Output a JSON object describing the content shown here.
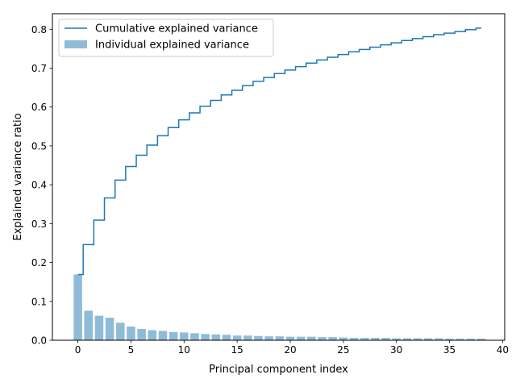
{
  "chart_data": {
    "type": "bar",
    "xlabel": "Principal component index",
    "ylabel": "Explained variance ratio",
    "xlim": [
      -2.4,
      40.2
    ],
    "ylim": [
      0.0,
      0.84
    ],
    "xticks": [
      0,
      5,
      10,
      15,
      20,
      25,
      30,
      35,
      40
    ],
    "yticks": [
      0.0,
      0.1,
      0.2,
      0.3,
      0.4,
      0.5,
      0.6,
      0.7,
      0.8
    ],
    "xtick_labels": [
      "0",
      "5",
      "10",
      "15",
      "20",
      "25",
      "30",
      "35",
      "40"
    ],
    "ytick_labels": [
      "0.0",
      "0.1",
      "0.2",
      "0.3",
      "0.4",
      "0.5",
      "0.6",
      "0.7",
      "0.8"
    ],
    "grid": false,
    "legend_position": "top-left",
    "x": [
      0,
      1,
      2,
      3,
      4,
      5,
      6,
      7,
      8,
      9,
      10,
      11,
      12,
      13,
      14,
      15,
      16,
      17,
      18,
      19,
      20,
      21,
      22,
      23,
      24,
      25,
      26,
      27,
      28,
      29,
      30,
      31,
      32,
      33,
      34,
      35,
      36,
      37,
      38
    ],
    "series": [
      {
        "name": "Individual explained variance",
        "kind": "bar",
        "color": "#8fbbd9",
        "values": [
          0.169,
          0.076,
          0.063,
          0.058,
          0.045,
          0.035,
          0.029,
          0.026,
          0.024,
          0.021,
          0.02,
          0.018,
          0.016,
          0.015,
          0.014,
          0.012,
          0.012,
          0.011,
          0.01,
          0.01,
          0.009,
          0.009,
          0.009,
          0.008,
          0.008,
          0.007,
          0.006,
          0.006,
          0.006,
          0.006,
          0.005,
          0.005,
          0.005,
          0.005,
          0.005,
          0.004,
          0.004,
          0.004,
          0.004
        ]
      },
      {
        "name": "Cumulative explained variance",
        "kind": "step",
        "color": "#1f77b4",
        "values": [
          0.169,
          0.246,
          0.309,
          0.366,
          0.412,
          0.447,
          0.476,
          0.502,
          0.526,
          0.547,
          0.567,
          0.585,
          0.602,
          0.617,
          0.631,
          0.643,
          0.655,
          0.666,
          0.676,
          0.686,
          0.695,
          0.704,
          0.713,
          0.721,
          0.728,
          0.735,
          0.742,
          0.748,
          0.754,
          0.76,
          0.765,
          0.771,
          0.776,
          0.781,
          0.786,
          0.79,
          0.794,
          0.799,
          0.803
        ]
      }
    ]
  }
}
